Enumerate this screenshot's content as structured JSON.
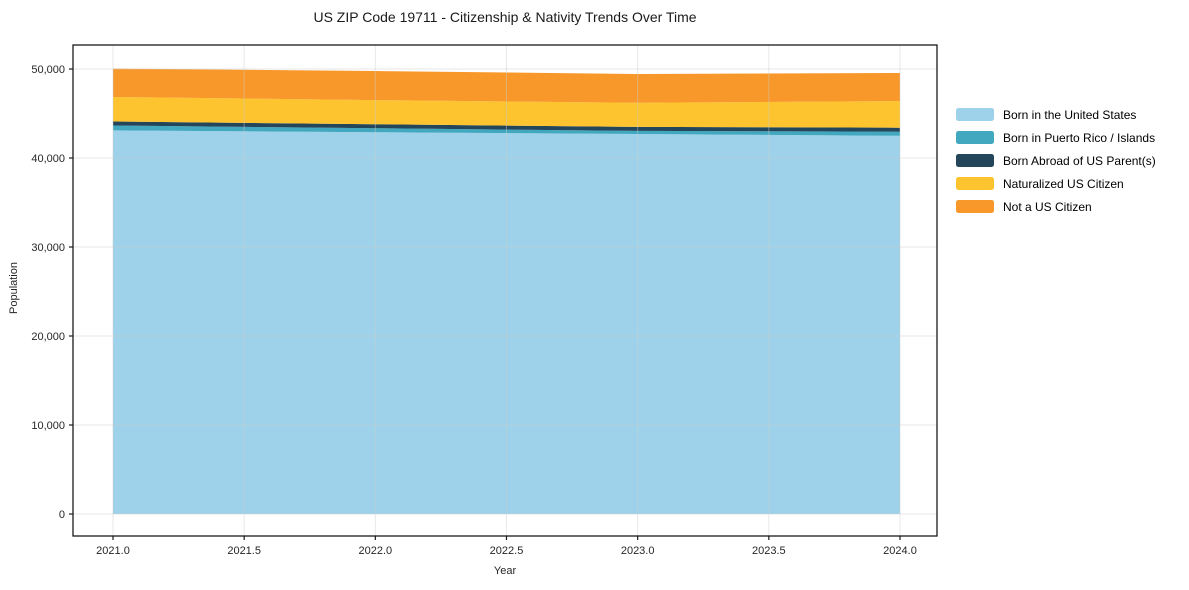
{
  "chart_data": {
    "type": "area",
    "stacked": true,
    "title": "US ZIP Code 19711 - Citizenship & Nativity Trends Over Time",
    "xlabel": "Year",
    "ylabel": "Population",
    "x": [
      2021,
      2022,
      2023,
      2024
    ],
    "xtick_values": [
      2021.0,
      2021.5,
      2022.0,
      2022.5,
      2023.0,
      2023.5,
      2024.0
    ],
    "xtick_labels": [
      "2021.0",
      "2021.5",
      "2022.0",
      "2022.5",
      "2023.0",
      "2023.5",
      "2024.0"
    ],
    "ytick_values": [
      0,
      10000,
      20000,
      30000,
      40000,
      50000
    ],
    "ytick_labels": [
      "0",
      "10,000",
      "20,000",
      "30,000",
      "40,000",
      "50,000"
    ],
    "ylim": [
      0,
      50000
    ],
    "xlim": [
      2020.85,
      2024.14
    ],
    "grid": true,
    "legend_position": "outside-center-right",
    "series": [
      {
        "name": "Born in the United States",
        "color": "#9ED2EA",
        "values": [
          43100,
          42900,
          42700,
          42500
        ]
      },
      {
        "name": "Born in Puerto Rico / Islands",
        "color": "#41A8BF",
        "values": [
          550,
          450,
          350,
          450
        ]
      },
      {
        "name": "Born Abroad of US Parent(s)",
        "color": "#24465A",
        "values": [
          450,
          450,
          450,
          450
        ]
      },
      {
        "name": "Naturalized US Citizen",
        "color": "#FDC42F",
        "values": [
          2750,
          2700,
          2700,
          3000
        ]
      },
      {
        "name": "Not a US Citizen",
        "color": "#F8982B",
        "values": [
          3200,
          3280,
          3240,
          3150
        ]
      }
    ],
    "totals": [
      50050,
      49780,
      49440,
      49550
    ],
    "colors": {
      "grid": "#cccccc",
      "spine": "#1a1a1a",
      "text": "#262626",
      "background": "#ffffff"
    }
  }
}
